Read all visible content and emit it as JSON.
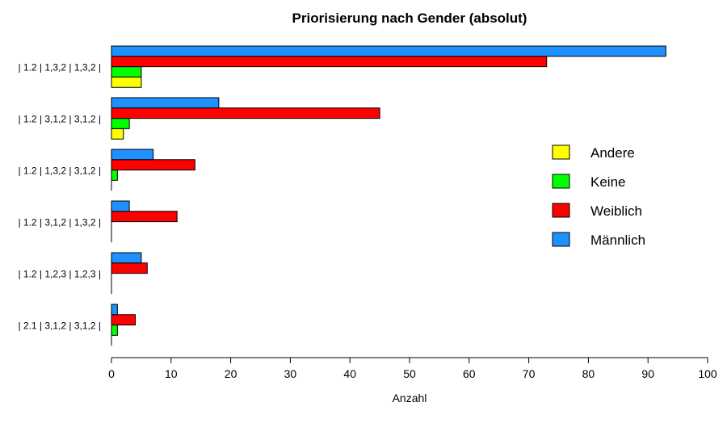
{
  "chart_data": {
    "type": "bar",
    "orientation": "horizontal",
    "title": "Priorisierung nach Gender (absolut)",
    "xlabel": "Anzahl",
    "ylabel": "",
    "xlim": [
      0,
      100
    ],
    "xticks": [
      0,
      10,
      20,
      30,
      40,
      50,
      60,
      70,
      80,
      90,
      100
    ],
    "categories": [
      "| 1.2 | 1,3,2 | 1,3,2 |",
      "| 1.2 | 3,1,2 | 3,1,2 |",
      "| 1.2 | 1,3,2 | 3,1,2 |",
      "| 1.2 | 3,1,2 | 1,3,2 |",
      "| 1.2 | 1,2,3 | 1,2,3 |",
      "| 2.1 | 3,1,2 | 3,1,2 |"
    ],
    "legend_position": "right",
    "grid": false,
    "series": [
      {
        "name": "Andere",
        "color": "#FFFF00",
        "values": [
          5,
          2,
          0,
          0,
          0,
          0
        ]
      },
      {
        "name": "Keine",
        "color": "#00FF00",
        "values": [
          5,
          3,
          1,
          0,
          0,
          1
        ]
      },
      {
        "name": "Weiblich",
        "color": "#FF0000",
        "values": [
          73,
          45,
          14,
          11,
          6,
          4
        ]
      },
      {
        "name": "Männlich",
        "color": "#1E90FF",
        "values": [
          93,
          18,
          7,
          3,
          5,
          1
        ]
      }
    ]
  }
}
